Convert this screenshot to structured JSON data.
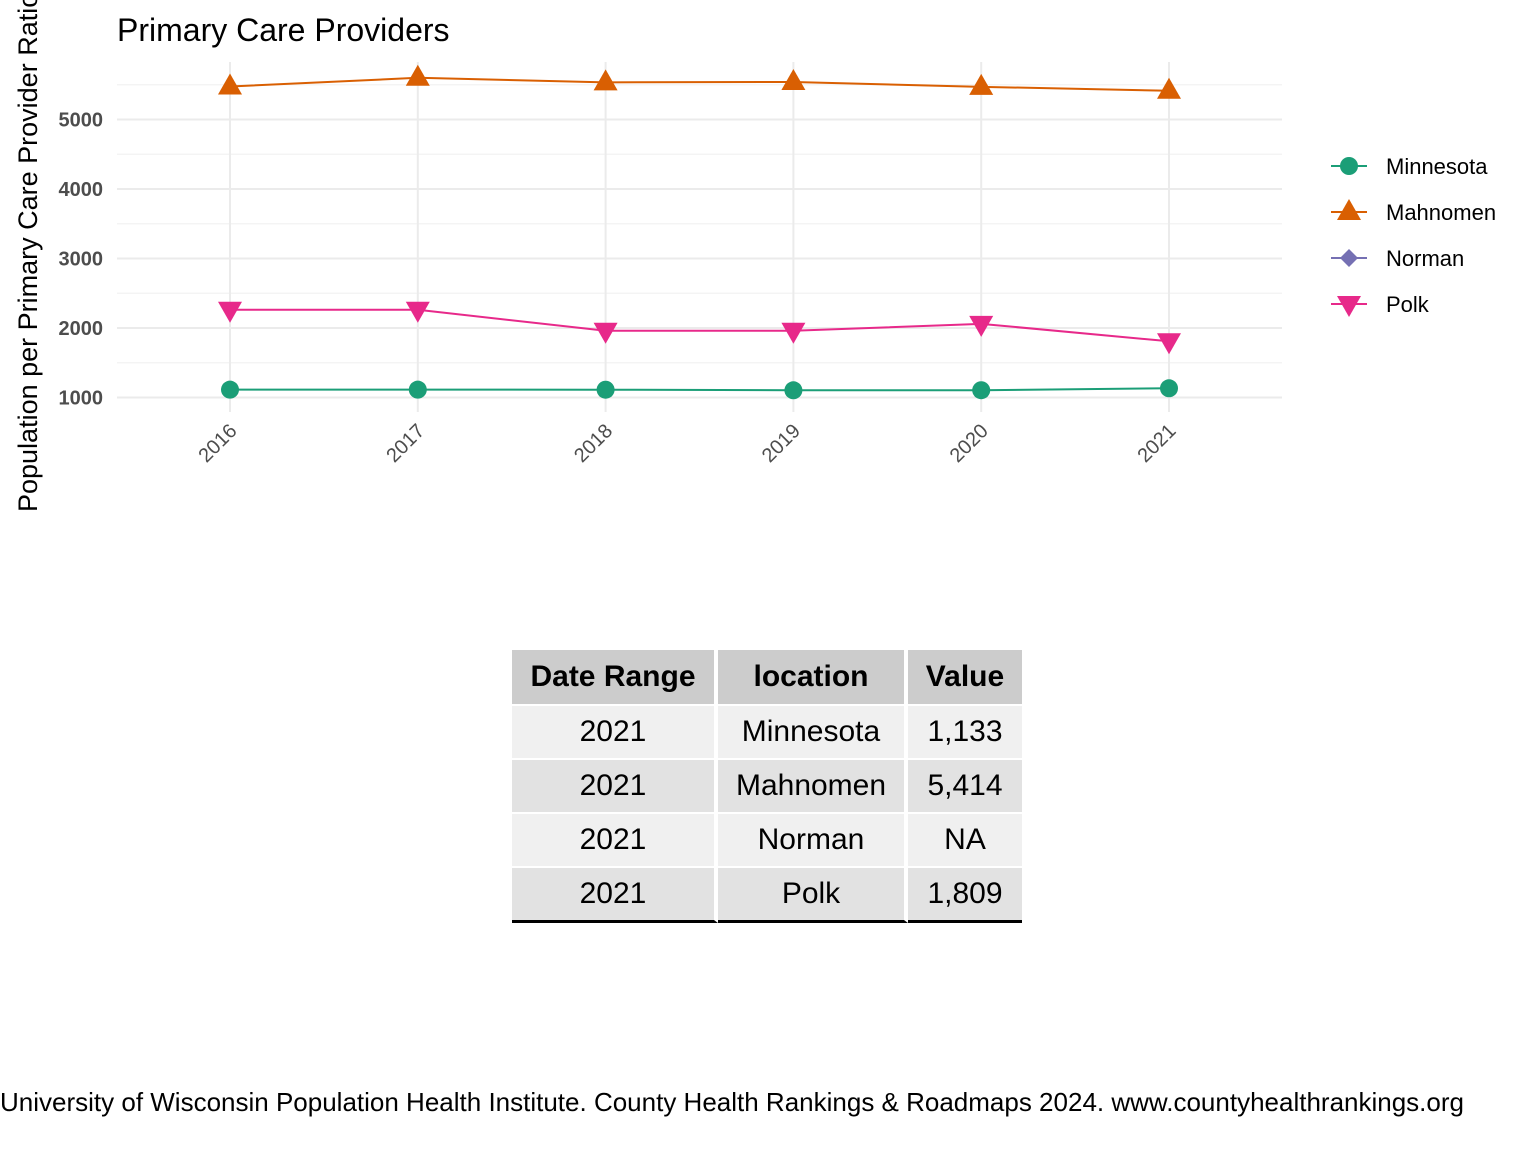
{
  "chart_data": {
    "type": "line",
    "title": "Primary Care Providers",
    "ylabel": "Population per Primary Care Provider Ratio",
    "xlabel": "",
    "x": [
      "2016",
      "2017",
      "2018",
      "2019",
      "2020",
      "2021"
    ],
    "y_ticks": [
      "1000",
      "2000",
      "3000",
      "4000",
      "5000"
    ],
    "ylim": [
      900,
      5800
    ],
    "grid": true,
    "legend_position": "right",
    "series": [
      {
        "name": "Minnesota",
        "color": "#1b9e77",
        "marker": "circle",
        "values": [
          1113,
          1113,
          1112,
          1104,
          1105,
          1133
        ]
      },
      {
        "name": "Mahnomen",
        "color": "#d95f02",
        "marker": "triangle-up",
        "values": [
          5475,
          5600,
          5535,
          5540,
          5470,
          5414
        ]
      },
      {
        "name": "Norman",
        "color": "#7570b3",
        "marker": "diamond",
        "values": [
          null,
          null,
          null,
          null,
          null,
          null
        ]
      },
      {
        "name": "Polk",
        "color": "#e7298a",
        "marker": "triangle-down",
        "values": [
          2262,
          2262,
          1960,
          1960,
          2060,
          1809
        ]
      }
    ]
  },
  "table": {
    "headers": [
      "Date Range",
      "location",
      "Value"
    ],
    "rows": [
      [
        "2021",
        "Minnesota",
        "1,133"
      ],
      [
        "2021",
        "Mahnomen",
        "5,414"
      ],
      [
        "2021",
        "Norman",
        "NA"
      ],
      [
        "2021",
        "Polk",
        "1,809"
      ]
    ]
  },
  "footer": "University of Wisconsin Population Health Institute. County Health Rankings & Roadmaps 2024. www.countyhealthrankings.org"
}
